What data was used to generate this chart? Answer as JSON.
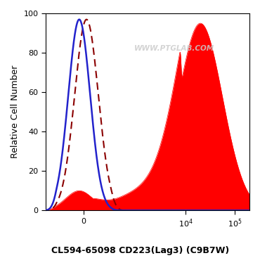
{
  "title": "CL594-65098 CD223(Lag3) (C9B7W)",
  "ylabel": "Relative Cell Number",
  "watermark": "WWW.PTGLAB.COM",
  "ylim": [
    0,
    100
  ],
  "xlim_left": -500,
  "xlim_right": 200000,
  "background_color": "#ffffff",
  "isotype_color": "#2222cc",
  "dashed_color": "#8b0000",
  "sample_color": "#ff0000",
  "title_fontsize": 9,
  "ylabel_fontsize": 9,
  "tick_fontsize": 8,
  "linthresh": 300,
  "linscale": 0.5
}
